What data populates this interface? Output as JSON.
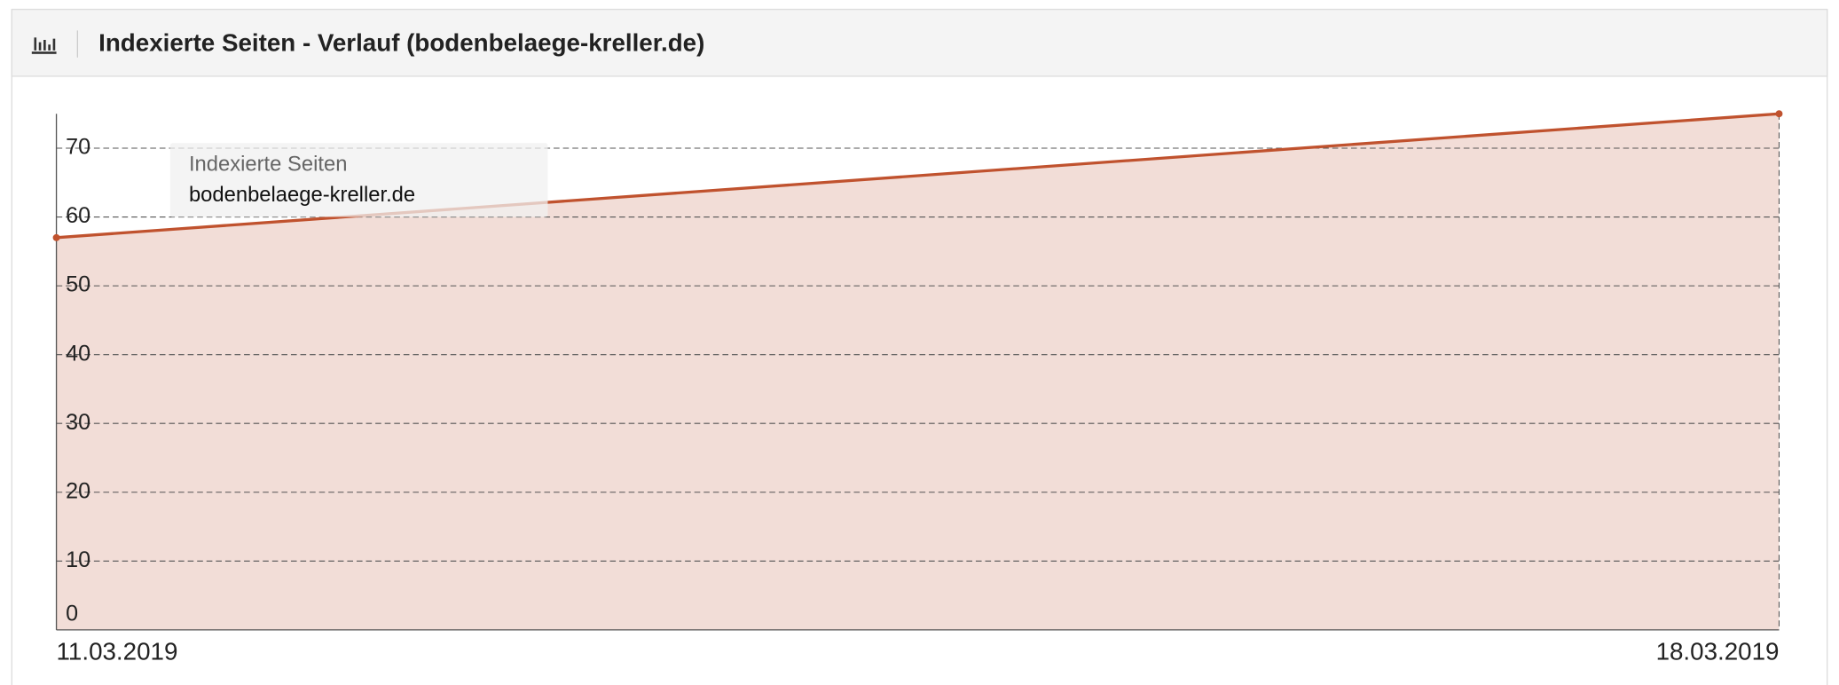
{
  "chart_data": {
    "type": "area",
    "title": "Indexierte Seiten - Verlauf (bodenbelaege-kreller.de)",
    "legend_title": "Indexierte Seiten",
    "categories": [
      "11.03.2019",
      "18.03.2019"
    ],
    "series": [
      {
        "name": "bodenbelaege-kreller.de",
        "color": "#c0522e",
        "fill": "#f2ddd7",
        "values": [
          57,
          75
        ]
      }
    ],
    "ylim": [
      0,
      75
    ],
    "yticks": [
      0,
      10,
      20,
      30,
      40,
      50,
      60,
      70
    ],
    "grid": true,
    "legend": "upper left"
  }
}
